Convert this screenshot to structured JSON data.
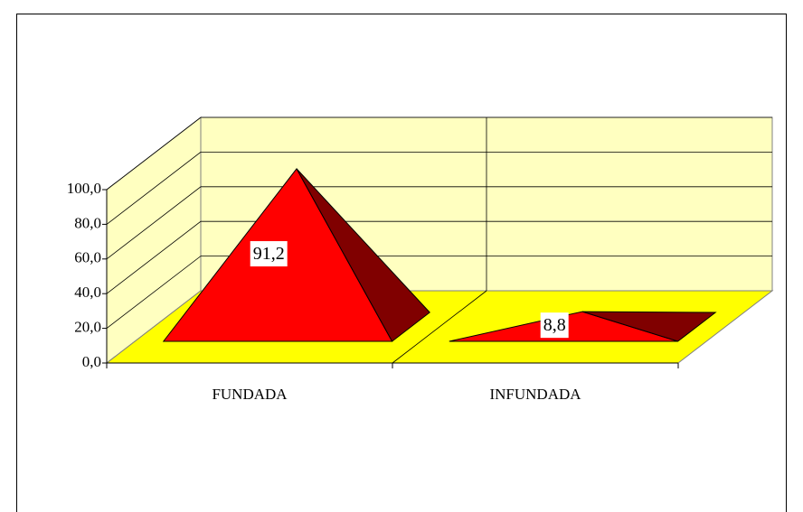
{
  "chart_data": {
    "type": "pyramid",
    "categories": [
      "FUNDADA",
      "INFUNDADA"
    ],
    "values": [
      91.2,
      8.8
    ],
    "value_labels": [
      "91,2",
      "8,8"
    ],
    "color": "#ff0000",
    "side_color": "#800000",
    "wall_color": "#ffffc0",
    "floor_color": "#ffff00",
    "ylim": [
      0,
      100
    ],
    "yticks": [
      {
        "value": 0,
        "label": "0,0"
      },
      {
        "value": 20,
        "label": "20,0"
      },
      {
        "value": 40,
        "label": "40,0"
      },
      {
        "value": 60,
        "label": "60,0"
      },
      {
        "value": 80,
        "label": "80,0"
      },
      {
        "value": 100,
        "label": "100,0"
      }
    ],
    "grid": true
  }
}
